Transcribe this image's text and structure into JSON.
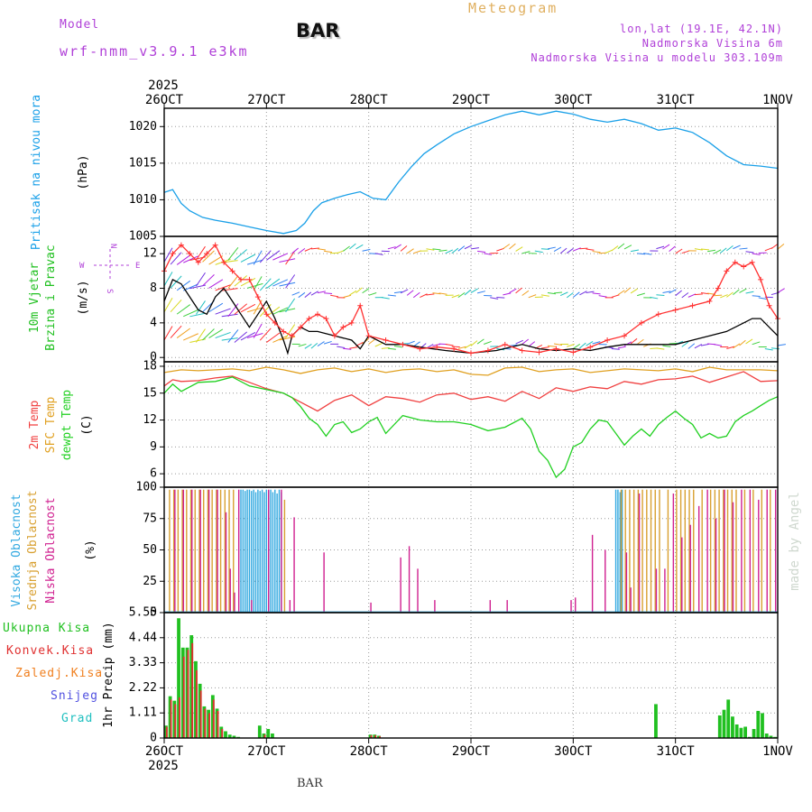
{
  "header": {
    "meteogram": "Meteogram",
    "model_label": "Model",
    "model_value": "wrf-nmm_v3.9.1 e3km",
    "station": "BAR",
    "lonlat": "lon,lat (19.1E, 42.1N)",
    "elevation": "Nadmorska Visina 6m",
    "model_elevation": "Nadmorska Visina u modelu 303.109m",
    "footer_station": "BAR",
    "credit": "made by Angel",
    "year": "2025"
  },
  "time_axis": {
    "labels": [
      "26OCT",
      "27OCT",
      "28OCT",
      "29OCT",
      "30OCT",
      "31OCT",
      "1NOV"
    ],
    "hours_total": 144
  },
  "colors": {
    "pressure": "#1aa0e8",
    "wind_speed": "#000000",
    "wind_gust": "#ff3030",
    "temp_2m": "#f04040",
    "temp_sfc": "#e0a020",
    "dewpoint": "#20d020",
    "cloud_high": "#30a8e0",
    "cloud_mid": "#d8a030",
    "cloud_low": "#d02090",
    "precip_total": "#20c020",
    "precip_conv": "#e03030",
    "precip_frozen": "#f08020",
    "precip_snow": "#5050e0",
    "precip_hail": "#20c0c0",
    "grid": "#aaaaaa"
  },
  "panels": {
    "pressure": {
      "label": "Pritisak na nivou mora",
      "unit": "(hPa)"
    },
    "wind": {
      "label1": "10m Vjetar",
      "label2": "Brzina i Pravac",
      "unit": "(m/s)",
      "compass_n": "N",
      "compass_s": "S",
      "compass_w": "W",
      "compass_e": "E"
    },
    "temp": {
      "label1": "2m Temp",
      "label2": "SFC Temp",
      "label3": "dewpt Temp",
      "unit": "(C)"
    },
    "cloud": {
      "label1": "Visoka Oblacnost",
      "label2": "Srednja Oblacnost",
      "label3": "Niska Oblacnost",
      "unit": "(%)"
    },
    "precip": {
      "unit": "1hr Precip (mm)",
      "legend": [
        "Ukupna Kisa",
        "Konvek.Kisa",
        "Zaledj.Kisa",
        "Snijeg",
        "Grad"
      ]
    }
  },
  "chart_data": [
    {
      "type": "line",
      "title": "Pritisak na nivou mora",
      "ylabel": "(hPa)",
      "ylim": [
        1005,
        1022.5
      ],
      "yticks": [
        "1005",
        "1010",
        "1015",
        "1020"
      ],
      "grid": true,
      "series": [
        {
          "name": "Pritisak na nivou mora",
          "x": [
            0,
            2,
            4,
            6,
            9,
            12,
            16,
            20,
            24,
            28,
            31,
            33,
            35,
            37,
            40,
            43,
            46,
            49,
            52,
            55,
            58,
            61,
            64,
            68,
            72,
            76,
            80,
            84,
            88,
            92,
            96,
            100,
            104,
            108,
            112,
            116,
            120,
            124,
            128,
            132,
            136,
            140,
            144
          ],
          "values": [
            1011,
            1011.4,
            1009.5,
            1008.5,
            1007.6,
            1007.2,
            1006.8,
            1006.3,
            1005.8,
            1005.4,
            1005.8,
            1006.8,
            1008.5,
            1009.6,
            1010.2,
            1010.7,
            1011.1,
            1010.2,
            1010,
            1012.4,
            1014.5,
            1016.3,
            1017.5,
            1019,
            1020,
            1020.8,
            1021.6,
            1022.1,
            1021.6,
            1022.1,
            1021.7,
            1021,
            1020.6,
            1021,
            1020.4,
            1019.5,
            1019.8,
            1019.2,
            1017.8,
            1016,
            1014.8,
            1014.6,
            1014.3
          ]
        }
      ]
    },
    {
      "type": "line",
      "title": "10m Vjetar Brzina i Pravac",
      "ylabel": "(m/s)",
      "ylim": [
        -0.5,
        14
      ],
      "yticks": [
        "0",
        "4",
        "8",
        "12"
      ],
      "grid": true,
      "series": [
        {
          "name": "10m Vjetar Brzina",
          "x": [
            0,
            2,
            4,
            6,
            8,
            10,
            12,
            14,
            16,
            18,
            20,
            22,
            24,
            26,
            28,
            29,
            30,
            32,
            34,
            36,
            40,
            44,
            46,
            48,
            52,
            56,
            60,
            66,
            72,
            78,
            84,
            88,
            92,
            96,
            100,
            104,
            108,
            112,
            116,
            120,
            124,
            128,
            132,
            136,
            138,
            140,
            142,
            144
          ],
          "values": [
            6.5,
            9,
            8.5,
            7,
            5.5,
            5,
            7,
            8,
            6.5,
            5,
            3.5,
            5,
            6.5,
            4.5,
            2,
            0.5,
            2.5,
            3.5,
            3,
            3,
            2.5,
            2,
            1,
            2.5,
            1.5,
            1.5,
            1.2,
            0.8,
            0.5,
            0.8,
            1.5,
            1,
            0.8,
            1,
            0.8,
            1.2,
            1.5,
            1.5,
            1.5,
            1.5,
            2,
            2.5,
            3,
            4,
            4.5,
            4.5,
            3.5,
            2.5
          ]
        },
        {
          "name": "10m Vjetar Udar",
          "x": [
            0,
            2,
            4,
            6,
            8,
            10,
            12,
            14,
            16,
            18,
            20,
            22,
            24,
            26,
            28,
            30,
            32,
            34,
            36,
            38,
            40,
            42,
            44,
            46,
            48,
            52,
            56,
            60,
            64,
            68,
            72,
            76,
            80,
            84,
            88,
            92,
            96,
            100,
            104,
            108,
            112,
            116,
            120,
            124,
            128,
            130,
            132,
            134,
            136,
            138,
            140,
            142,
            144
          ],
          "values": [
            10,
            12,
            13,
            12,
            11,
            12,
            13,
            11,
            10,
            9,
            9,
            7,
            5,
            4,
            3,
            2.5,
            3.5,
            4.5,
            5,
            4.5,
            2.5,
            3.5,
            4,
            6,
            2.5,
            2,
            1.5,
            1,
            1.2,
            1,
            0.5,
            0.8,
            1.5,
            0.8,
            0.6,
            1,
            0.6,
            1.2,
            2,
            2.5,
            4,
            5,
            5.5,
            6,
            6.5,
            8,
            10,
            11,
            10.5,
            11,
            9,
            6,
            4.5
          ]
        }
      ]
    },
    {
      "type": "line",
      "title": "2m Temp / SFC Temp / dewpt Temp",
      "ylabel": "(C)",
      "ylim": [
        4.5,
        18.5
      ],
      "yticks": [
        "6",
        "9",
        "12",
        "15",
        "18"
      ],
      "grid": true,
      "series": [
        {
          "name": "2m Temp",
          "x": [
            0,
            2,
            4,
            8,
            12,
            16,
            20,
            24,
            28,
            32,
            36,
            40,
            44,
            48,
            52,
            56,
            60,
            64,
            68,
            72,
            76,
            80,
            84,
            88,
            92,
            96,
            100,
            104,
            108,
            112,
            116,
            120,
            124,
            128,
            132,
            136,
            140,
            144
          ],
          "values": [
            15.8,
            16.5,
            16.3,
            16.4,
            16.7,
            16.9,
            16.2,
            15.5,
            15.0,
            14.0,
            13.0,
            14.2,
            14.8,
            13.6,
            14.6,
            14.4,
            14.0,
            14.8,
            15.0,
            14.3,
            14.6,
            14.1,
            15.2,
            14.4,
            15.6,
            15.2,
            15.7,
            15.5,
            16.3,
            16.0,
            16.5,
            16.6,
            16.9,
            16.2,
            16.8,
            17.4,
            16.3,
            16.4
          ]
        },
        {
          "name": "SFC Temp",
          "x": [
            0,
            4,
            8,
            12,
            16,
            20,
            24,
            28,
            32,
            36,
            40,
            44,
            48,
            52,
            56,
            60,
            64,
            68,
            72,
            76,
            80,
            84,
            88,
            92,
            96,
            100,
            104,
            108,
            112,
            116,
            120,
            124,
            128,
            132,
            136,
            140,
            144
          ],
          "values": [
            17.3,
            17.6,
            17.5,
            17.6,
            17.7,
            17.5,
            17.9,
            17.6,
            17.2,
            17.6,
            17.8,
            17.4,
            17.7,
            17.3,
            17.6,
            17.7,
            17.4,
            17.6,
            17.1,
            17.0,
            17.8,
            17.9,
            17.4,
            17.6,
            17.7,
            17.3,
            17.5,
            17.7,
            17.6,
            17.5,
            17.7,
            17.4,
            17.9,
            17.6,
            17.6,
            17.6,
            17.5
          ]
        },
        {
          "name": "dewpt Temp",
          "x": [
            0,
            2,
            4,
            8,
            12,
            16,
            20,
            24,
            28,
            30,
            32,
            34,
            36,
            38,
            40,
            42,
            44,
            46,
            48,
            50,
            52,
            56,
            60,
            64,
            68,
            72,
            76,
            80,
            84,
            86,
            88,
            90,
            92,
            94,
            96,
            98,
            100,
            102,
            104,
            106,
            108,
            110,
            112,
            114,
            116,
            118,
            120,
            122,
            124,
            126,
            128,
            130,
            132,
            134,
            136,
            138,
            140,
            142,
            144
          ],
          "values": [
            15,
            16,
            15.2,
            16.2,
            16.3,
            16.8,
            15.8,
            15.4,
            15,
            14.5,
            13.5,
            12.2,
            11.5,
            10.2,
            11.5,
            11.8,
            10.6,
            11,
            11.8,
            12.3,
            10.5,
            12.5,
            12,
            11.8,
            11.8,
            11.5,
            10.8,
            11.2,
            12.2,
            11,
            8.5,
            7.5,
            5.6,
            6.5,
            9,
            9.5,
            11,
            12,
            11.8,
            10.5,
            9.2,
            10.2,
            11,
            10.2,
            11.5,
            12.3,
            13,
            12.2,
            11.5,
            10,
            10.5,
            10,
            10.2,
            11.8,
            12.5,
            13,
            13.6,
            14.2,
            14.6
          ]
        }
      ]
    },
    {
      "type": "bar",
      "title": "Visoka / Srednja / Niska Oblacnost",
      "ylabel": "(%)",
      "ylim": [
        0,
        100
      ],
      "yticks": [
        "0",
        "25",
        "50",
        "75",
        "100"
      ],
      "grid": true,
      "series": [
        {
          "name": "Visoka Oblacnost",
          "x": [
            18,
            18.5,
            19,
            19.5,
            20,
            20.5,
            21,
            21.5,
            22,
            22.5,
            23,
            23.5,
            24,
            24.5,
            25,
            25.5,
            26,
            26.5,
            27,
            27.5,
            106,
            106.5,
            107,
            107.5
          ],
          "values": [
            98,
            98,
            97,
            98,
            98,
            97,
            98,
            96,
            98,
            97,
            98,
            96,
            98,
            97,
            98,
            96,
            98,
            95,
            98,
            96,
            98,
            98,
            96,
            98
          ]
        },
        {
          "name": "Srednja Oblacnost",
          "x": [
            1,
            2,
            3,
            4,
            5,
            6,
            7,
            8,
            9,
            10,
            11,
            12,
            13,
            14,
            15,
            16,
            28,
            107,
            108,
            109,
            110,
            111,
            112,
            113,
            114,
            115,
            116,
            118,
            120,
            121,
            122,
            123,
            124,
            126,
            128,
            129,
            130,
            131,
            132,
            133,
            134,
            136,
            138,
            140,
            142
          ],
          "values": [
            98,
            98,
            98,
            98,
            98,
            98,
            98,
            98,
            98,
            98,
            98,
            98,
            98,
            98,
            98,
            98,
            90,
            98,
            98,
            98,
            98,
            98,
            98,
            98,
            98,
            98,
            98,
            98,
            98,
            98,
            98,
            98,
            98,
            98,
            98,
            98,
            98,
            98,
            98,
            98,
            98,
            98,
            98,
            98,
            98
          ]
        },
        {
          "name": "Niska Oblacnost",
          "x": [
            2,
            4,
            6,
            8,
            10,
            12,
            14,
            15,
            16,
            17,
            20,
            24,
            27,
            29,
            30,
            37,
            48,
            55,
            57,
            59,
            63,
            76,
            80,
            95,
            96,
            100,
            103,
            108,
            109,
            111,
            115,
            117,
            119,
            121,
            123,
            125,
            127,
            129,
            131,
            133,
            135,
            137,
            139,
            141,
            143
          ],
          "values": [
            98,
            98,
            98,
            98,
            98,
            98,
            80,
            35,
            16,
            98,
            10,
            98,
            98,
            10,
            76,
            48,
            8,
            44,
            53,
            35,
            10,
            10,
            10,
            10,
            12,
            62,
            50,
            48,
            20,
            95,
            35,
            35,
            95,
            60,
            70,
            85,
            98,
            75,
            98,
            88,
            98,
            98,
            90,
            98,
            98
          ]
        }
      ]
    },
    {
      "type": "bar",
      "title": "1hr Precip",
      "ylabel": "1hr Precip (mm)",
      "ylim": [
        0,
        5.55
      ],
      "yticks": [
        "0",
        "1.11",
        "2.22",
        "3.33",
        "4.44",
        "5.55"
      ],
      "grid": true,
      "series": [
        {
          "name": "Ukupna Kisa",
          "x": [
            0,
            1,
            2,
            3,
            4,
            5,
            6,
            7,
            8,
            9,
            10,
            11,
            12,
            13,
            14,
            15,
            16,
            17,
            22,
            23,
            24,
            25,
            48,
            49,
            50,
            115,
            130,
            131,
            132,
            133,
            134,
            135,
            136,
            137,
            138,
            139,
            140,
            141,
            142,
            143
          ],
          "values": [
            0.55,
            1.85,
            1.65,
            5.3,
            4.0,
            4.0,
            4.55,
            3.4,
            2.4,
            1.4,
            1.25,
            1.9,
            1.3,
            0.5,
            0.3,
            0.15,
            0.1,
            0.05,
            0.55,
            0.2,
            0.4,
            0.2,
            0.15,
            0.15,
            0.1,
            1.5,
            1.0,
            1.25,
            1.7,
            0.95,
            0.6,
            0.45,
            0.5,
            0.05,
            0.4,
            1.2,
            1.1,
            0.2,
            0.1,
            0.05
          ]
        },
        {
          "name": "Konvek.Kisa",
          "x": [
            0,
            1,
            2,
            3,
            4,
            5,
            6,
            7,
            8,
            9,
            10,
            11,
            12,
            13,
            23,
            48,
            49,
            50
          ],
          "values": [
            0.5,
            1.7,
            1.5,
            1.8,
            3.6,
            3.9,
            4.2,
            3.0,
            2.1,
            1.3,
            1.1,
            1.7,
            1.2,
            0.4,
            0.15,
            0.12,
            0.12,
            0.08
          ]
        }
      ]
    }
  ]
}
